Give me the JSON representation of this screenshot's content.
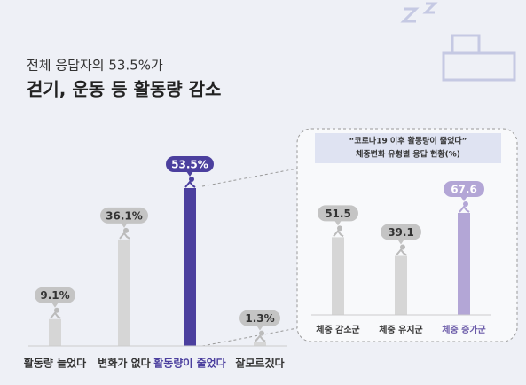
{
  "chart_data": [
    {
      "type": "bar",
      "subtitle": "전체 응답자의 53.5%가",
      "title": "걷기, 운동 등 활동량 감소",
      "categories": [
        "활동량 늘었다",
        "변화가 없다",
        "활동량이 줄었다",
        "잘모르겠다"
      ],
      "values": [
        9.1,
        36.1,
        53.5,
        1.3
      ],
      "value_labels": [
        "9.1%",
        "36.1%",
        "53.5%",
        "1.3%"
      ],
      "colors": [
        "#d6d6d6",
        "#d6d6d6",
        "#4b3f9e",
        "#d6d6d6"
      ]
    },
    {
      "type": "bar",
      "title": "“코로나19 이후 활동량이 줄었다”",
      "subtitle": "체중변화 유형별 응답 현황(%)",
      "categories": [
        "체중 감소군",
        "체중 유지군",
        "체중 증가군"
      ],
      "values": [
        51.5,
        39.1,
        67.6
      ],
      "colors": [
        "#d6d6d6",
        "#d6d6d6",
        "#b3a6d6"
      ]
    }
  ]
}
